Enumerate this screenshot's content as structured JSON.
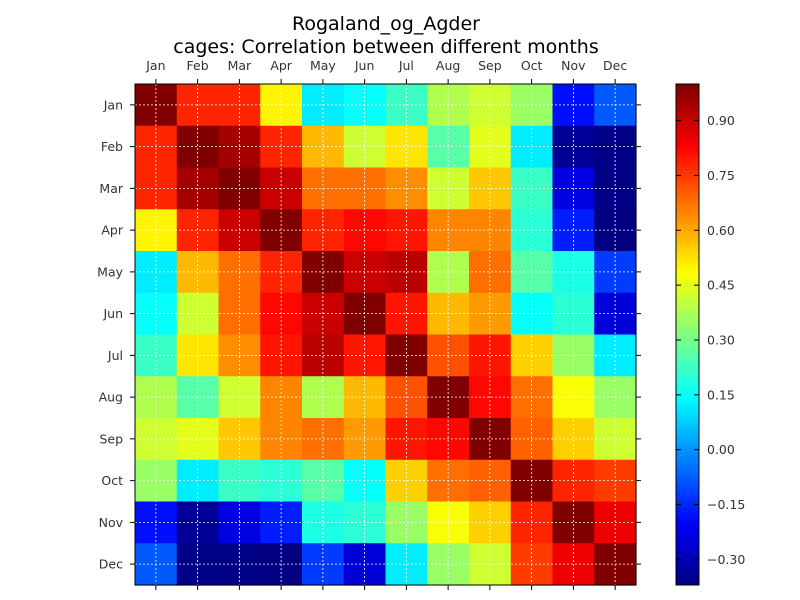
{
  "chart_data": {
    "type": "heatmap",
    "title": "Rogaland_og_Agder",
    "subtitle": "cages: Correlation between different months",
    "xlabel": "",
    "ylabel": "",
    "x_categories": [
      "Jan",
      "Feb",
      "Mar",
      "Apr",
      "May",
      "Jun",
      "Jul",
      "Aug",
      "Sep",
      "Oct",
      "Nov",
      "Dec"
    ],
    "y_categories": [
      "Jan",
      "Feb",
      "Mar",
      "Apr",
      "May",
      "Jun",
      "Jul",
      "Aug",
      "Sep",
      "Oct",
      "Nov",
      "Dec"
    ],
    "values": [
      [
        1.0,
        0.78,
        0.78,
        0.5,
        0.12,
        0.15,
        0.22,
        0.38,
        0.42,
        0.35,
        -0.18,
        -0.08
      ],
      [
        0.78,
        1.0,
        0.95,
        0.78,
        0.58,
        0.42,
        0.52,
        0.26,
        0.45,
        0.12,
        -0.34,
        -0.36
      ],
      [
        0.78,
        0.95,
        1.0,
        0.9,
        0.68,
        0.68,
        0.64,
        0.42,
        0.56,
        0.22,
        -0.24,
        -0.36
      ],
      [
        0.5,
        0.78,
        0.9,
        1.0,
        0.78,
        0.82,
        0.8,
        0.65,
        0.65,
        0.2,
        -0.16,
        -0.37
      ],
      [
        0.12,
        0.58,
        0.68,
        0.78,
        1.0,
        0.9,
        0.92,
        0.38,
        0.68,
        0.26,
        0.18,
        -0.12
      ],
      [
        0.15,
        0.42,
        0.68,
        0.82,
        0.9,
        1.0,
        0.8,
        0.58,
        0.62,
        0.15,
        0.2,
        -0.25
      ],
      [
        0.22,
        0.52,
        0.64,
        0.8,
        0.92,
        0.8,
        1.0,
        0.72,
        0.8,
        0.55,
        0.35,
        0.12
      ],
      [
        0.38,
        0.26,
        0.42,
        0.65,
        0.38,
        0.58,
        0.72,
        1.0,
        0.82,
        0.68,
        0.48,
        0.35
      ],
      [
        0.42,
        0.45,
        0.56,
        0.65,
        0.68,
        0.62,
        0.8,
        0.82,
        1.0,
        0.7,
        0.55,
        0.42
      ],
      [
        0.35,
        0.12,
        0.22,
        0.2,
        0.26,
        0.15,
        0.55,
        0.68,
        0.7,
        1.0,
        0.78,
        0.75
      ],
      [
        -0.18,
        -0.34,
        -0.24,
        -0.16,
        0.18,
        0.2,
        0.35,
        0.48,
        0.55,
        0.78,
        1.0,
        0.85
      ],
      [
        -0.08,
        -0.36,
        -0.36,
        -0.37,
        -0.12,
        -0.25,
        0.12,
        0.35,
        0.42,
        0.75,
        0.85,
        1.0
      ]
    ],
    "colorbar": {
      "vmin": -0.37,
      "vmax": 1.0,
      "ticks": [
        -0.3,
        -0.15,
        0.0,
        0.15,
        0.3,
        0.45,
        0.6,
        0.75,
        0.9
      ],
      "tick_labels": [
        "−0.30",
        "−0.15",
        "0.00",
        "0.15",
        "0.30",
        "0.45",
        "0.60",
        "0.75",
        "0.90"
      ],
      "colormap": "jet"
    },
    "grid": true
  }
}
